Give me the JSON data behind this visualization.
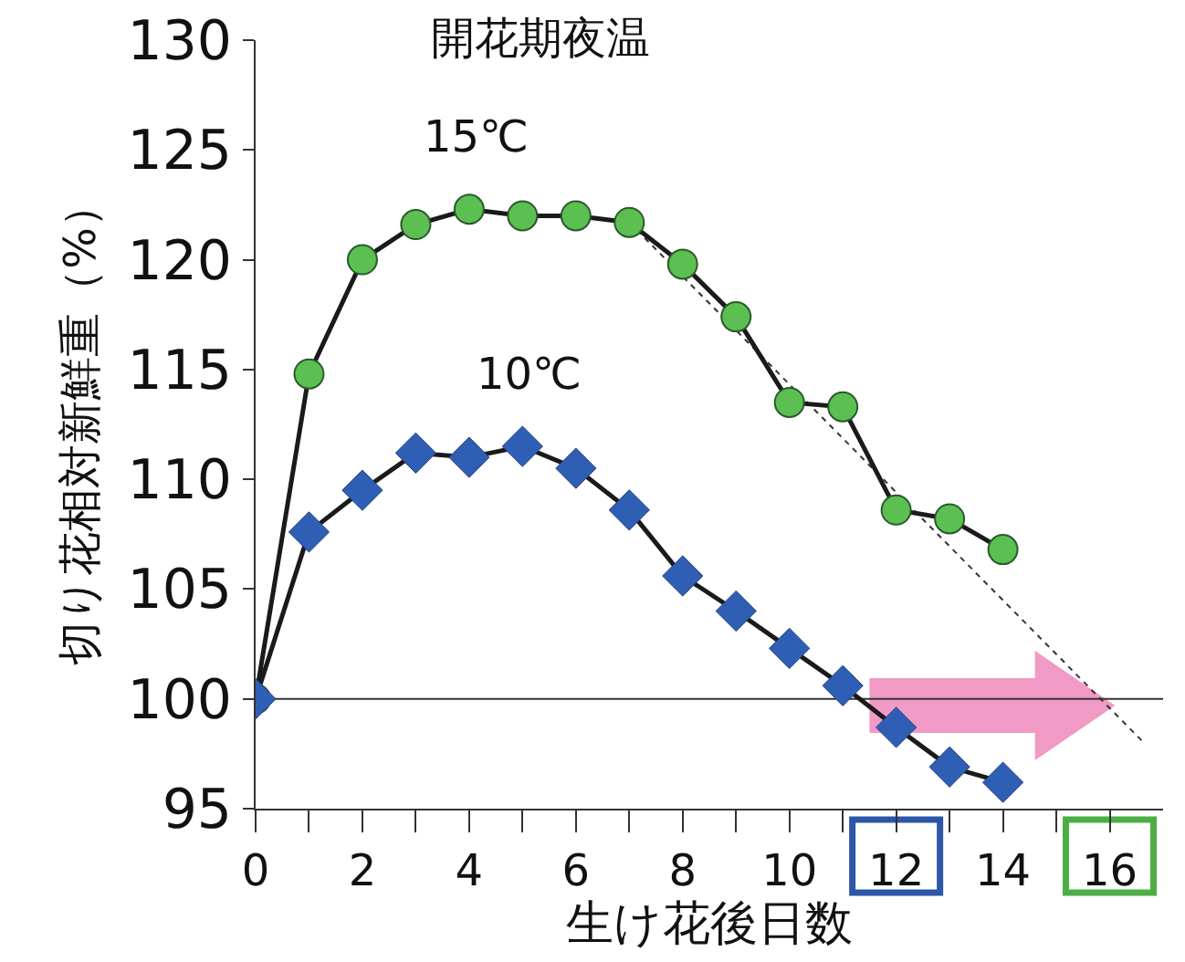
{
  "chart_data": {
    "type": "line",
    "xlabel": "生け花後日数",
    "ylabel": "切り花相対新鮮重（%）",
    "series": [
      {
        "name": "15℃",
        "color": "#5cbf52",
        "x": [
          0,
          1,
          2,
          3,
          4,
          5,
          6,
          7,
          8,
          9,
          10,
          11,
          12,
          13,
          14
        ],
        "values": [
          100,
          114.8,
          120.0,
          121.6,
          122.3,
          122.0,
          122.0,
          121.7,
          119.8,
          117.4,
          113.5,
          113.3,
          108.6,
          108.2,
          106.8
        ]
      },
      {
        "name": "10℃",
        "color": "#2f5fb5",
        "marker": "diamond",
        "x": [
          0,
          1,
          2,
          3,
          4,
          5,
          6,
          7,
          8,
          9,
          10,
          11,
          12,
          13,
          14
        ],
        "values": [
          100,
          107.6,
          109.5,
          111.2,
          111.0,
          111.5,
          110.5,
          108.6,
          105.6,
          104.0,
          102.3,
          100.6,
          98.7,
          96.9,
          96.2
        ]
      },
      {
        "type": "line",
        "color": "#333333",
        "line_style": "dotted",
        "marker": "none",
        "x": [
          7,
          16.6
        ],
        "values": [
          121.7,
          98.1
        ]
      }
    ],
    "ref_lines": [
      {
        "axis": "y",
        "value": 100,
        "color": "#333333"
      }
    ],
    "annotations": [
      "開花期夜温"
    ],
    "xlim": [
      0,
      17
    ],
    "xticks": [
      0,
      {
        "value": 1,
        "label": null
      },
      2,
      {
        "value": 3,
        "label": null
      },
      4,
      {
        "value": 5,
        "label": null
      },
      6,
      {
        "value": 7,
        "label": null
      },
      8,
      {
        "value": 9,
        "label": null
      },
      10,
      {
        "value": 11,
        "label": null
      },
      12,
      {
        "value": 13,
        "label": null
      },
      14,
      {
        "value": 15,
        "label": null
      },
      16
    ],
    "ylim": [
      95,
      130
    ],
    "yticks": [
      95,
      100,
      105,
      110,
      115,
      120,
      125,
      130
    ],
    "grid": false,
    "legend": false,
    "marker": "circle",
    "line_style": "solid"
  }
}
